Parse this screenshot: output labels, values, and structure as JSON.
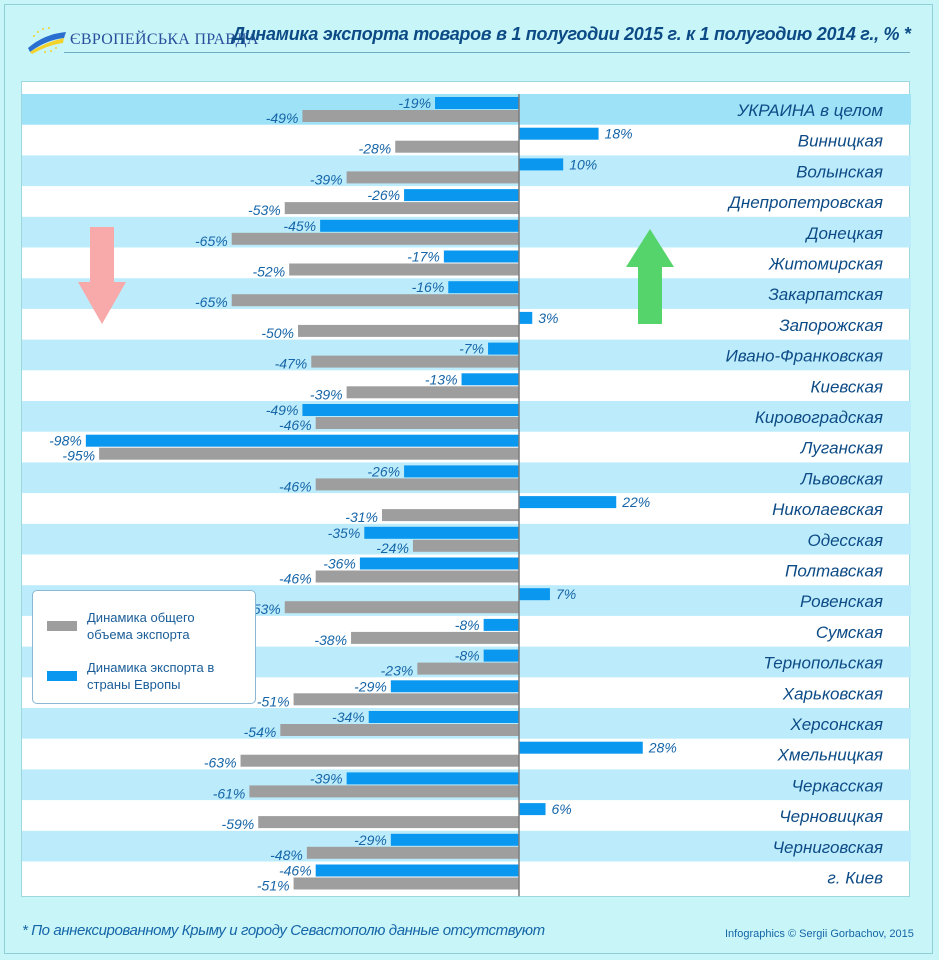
{
  "header": {
    "brand": "ЄВРОПЕЙСЬКА ПРАВДА",
    "title": "Динамика экспорта товаров в 1 полугодии 2015 г.  к 1 полугодию 2014 г., % *"
  },
  "legend": [
    {
      "label": "Динамика общего объема экспорта",
      "color": "#9e9e9e"
    },
    {
      "label": "Динамика экспорта в страны Европы",
      "color": "#0a97ef"
    }
  ],
  "footer": {
    "footnote": "* По аннексированному Крыму и городу Севастополю данные отсутствуют",
    "credit": "Infographics © Sergii Gorbachov, 2015"
  },
  "colors": {
    "background": "#c8f6f8",
    "band": "#bcecfb",
    "band_highlight": "#9ee2f7",
    "total_bar": "#9e9e9e",
    "europe_bar": "#0a97ef",
    "label_text": "#1565a8",
    "arrow_down": "#f8a9a9",
    "arrow_up": "#56d46c"
  },
  "chart_data": {
    "type": "bar",
    "orientation": "horizontal",
    "title": "Динамика экспорта товаров в 1 полугодии 2015 г.  к 1 полугодию 2014 г., % *",
    "xlabel": "",
    "ylabel": "",
    "xlim": [
      -100,
      40
    ],
    "unit": "%",
    "categories": [
      "УКРАИНА в целом",
      "Винницкая",
      "Волынская",
      "Днепропетровская",
      "Донецкая",
      "Житомирская",
      "Закарпатская",
      "Запорожская",
      "Ивано-Франковская",
      "Киевская",
      "Кировоградская",
      "Луганская",
      "Львовская",
      "Николаевская",
      "Одесская",
      "Полтавская",
      "Ровенская",
      "Сумская",
      "Тернопольская",
      "Харьковская",
      "Херсонская",
      "Хмельницкая",
      "Черкасская",
      "Черновицкая",
      "Черниговская",
      "г. Киев"
    ],
    "series": [
      {
        "name": "Динамика экспорта в страны Европы",
        "values": [
          -19,
          18,
          10,
          -26,
          -45,
          -17,
          -16,
          3,
          -7,
          -13,
          -49,
          -98,
          -26,
          22,
          -35,
          -36,
          7,
          -8,
          -8,
          -29,
          -34,
          28,
          -39,
          6,
          -29,
          -46
        ]
      },
      {
        "name": "Динамика общего объема экспорта",
        "values": [
          -49,
          -28,
          -39,
          -53,
          -65,
          -52,
          -65,
          -50,
          -47,
          -39,
          -46,
          -95,
          -46,
          -31,
          -24,
          -46,
          -53,
          -38,
          -23,
          -51,
          -54,
          -63,
          -61,
          -59,
          -48,
          -51
        ]
      }
    ],
    "legend_position": "middle-left",
    "grid": false
  }
}
